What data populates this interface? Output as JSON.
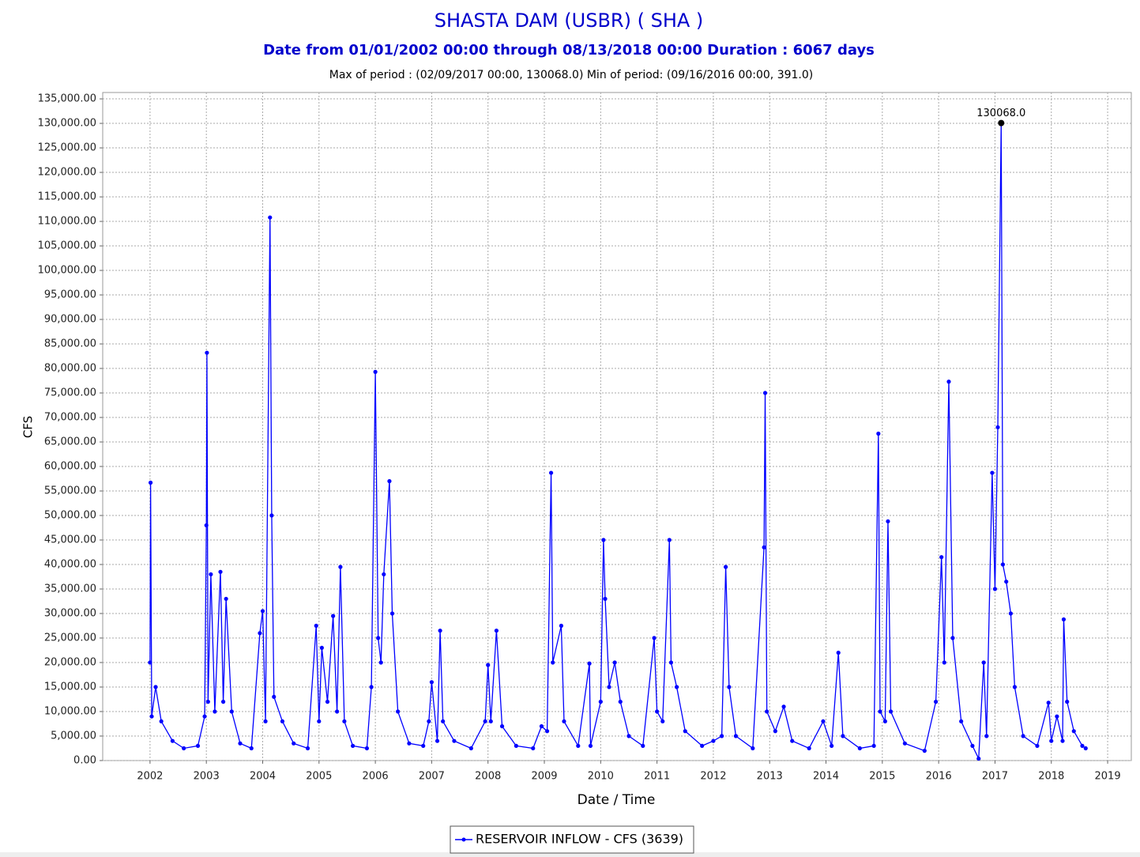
{
  "chart_data": {
    "type": "line",
    "title": "SHASTA DAM  (USBR) ( SHA )",
    "subtitle": "Date from 01/01/2002 00:00 through 08/13/2018 00:00 Duration : 6067 days",
    "caption": "Max of period : (02/09/2017 00:00, 130068.0)  Min of period: (09/16/2016 00:00,  391.0)",
    "x_label": "Date / Time",
    "y_label": "CFS",
    "grid": true,
    "legend": "bottom",
    "xlim": [
      2001.16,
      2019.42
    ],
    "xticks": [
      2002,
      2003,
      2004,
      2005,
      2006,
      2007,
      2008,
      2009,
      2010,
      2011,
      2012,
      2013,
      2014,
      2015,
      2016,
      2017,
      2018,
      2019
    ],
    "ylim": [
      0,
      136300
    ],
    "yticks": [
      {
        "value": 0,
        "label": "0.00"
      },
      {
        "value": 5000,
        "label": "5,000.00"
      },
      {
        "value": 10000,
        "label": "10,000.00"
      },
      {
        "value": 15000,
        "label": "15,000.00"
      },
      {
        "value": 20000,
        "label": "20,000.00"
      },
      {
        "value": 25000,
        "label": "25,000.00"
      },
      {
        "value": 30000,
        "label": "30,000.00"
      },
      {
        "value": 35000,
        "label": "35,000.00"
      },
      {
        "value": 40000,
        "label": "40,000.00"
      },
      {
        "value": 45000,
        "label": "45,000.00"
      },
      {
        "value": 50000,
        "label": "50,000.00"
      },
      {
        "value": 55000,
        "label": "55,000.00"
      },
      {
        "value": 60000,
        "label": "60,000.00"
      },
      {
        "value": 65000,
        "label": "65,000.00"
      },
      {
        "value": 70000,
        "label": "70,000.00"
      },
      {
        "value": 75000,
        "label": "75,000.00"
      },
      {
        "value": 80000,
        "label": "80,000.00"
      },
      {
        "value": 85000,
        "label": "85,000.00"
      },
      {
        "value": 90000,
        "label": "90,000.00"
      },
      {
        "value": 95000,
        "label": "95,000.00"
      },
      {
        "value": 100000,
        "label": "100,000.00"
      },
      {
        "value": 105000,
        "label": "105,000.00"
      },
      {
        "value": 110000,
        "label": "110,000.00"
      },
      {
        "value": 115000,
        "label": "115,000.00"
      },
      {
        "value": 120000,
        "label": "120,000.00"
      },
      {
        "value": 125000,
        "label": "125,000.00"
      },
      {
        "value": 130000,
        "label": "130,000.00"
      },
      {
        "value": 135000,
        "label": "135,000.00"
      }
    ],
    "x": [
      2002.0,
      2002.01,
      2002.03,
      2002.1,
      2002.2,
      2002.4,
      2002.6,
      2002.85,
      2002.97,
      2003.0,
      2003.01,
      2003.03,
      2003.08,
      2003.15,
      2003.25,
      2003.3,
      2003.35,
      2003.45,
      2003.6,
      2003.8,
      2003.95,
      2004.0,
      2004.05,
      2004.13,
      2004.16,
      2004.2,
      2004.35,
      2004.55,
      2004.8,
      2004.95,
      2005.0,
      2005.05,
      2005.15,
      2005.25,
      2005.32,
      2005.38,
      2005.45,
      2005.6,
      2005.85,
      2005.93,
      2006.0,
      2006.05,
      2006.1,
      2006.15,
      2006.25,
      2006.3,
      2006.4,
      2006.6,
      2006.85,
      2006.95,
      2007.0,
      2007.1,
      2007.15,
      2007.2,
      2007.4,
      2007.7,
      2007.95,
      2008.0,
      2008.05,
      2008.15,
      2008.25,
      2008.5,
      2008.8,
      2008.95,
      2009.05,
      2009.12,
      2009.15,
      2009.3,
      2009.35,
      2009.6,
      2009.8,
      2009.82,
      2010.0,
      2010.05,
      2010.08,
      2010.15,
      2010.25,
      2010.35,
      2010.5,
      2010.75,
      2010.95,
      2011.0,
      2011.1,
      2011.22,
      2011.25,
      2011.35,
      2011.5,
      2011.8,
      2012.0,
      2012.15,
      2012.22,
      2012.28,
      2012.4,
      2012.7,
      2012.9,
      2012.92,
      2012.95,
      2013.1,
      2013.25,
      2013.4,
      2013.7,
      2013.95,
      2014.1,
      2014.22,
      2014.3,
      2014.6,
      2014.85,
      2014.93,
      2014.96,
      2015.05,
      2015.1,
      2015.15,
      2015.4,
      2015.75,
      2015.95,
      2016.05,
      2016.1,
      2016.18,
      2016.25,
      2016.4,
      2016.6,
      2016.71,
      2016.8,
      2016.85,
      2016.95,
      2017.0,
      2017.05,
      2017.11,
      2017.14,
      2017.2,
      2017.28,
      2017.35,
      2017.5,
      2017.75,
      2017.95,
      2018.0,
      2018.1,
      2018.2,
      2018.22,
      2018.28,
      2018.4,
      2018.55,
      2018.61
    ],
    "series": [
      {
        "name": "RESERVOIR INFLOW - CFS (3639)",
        "color": "#0000ff",
        "values": [
          20000,
          56700,
          9000,
          15000,
          8000,
          4000,
          2500,
          3000,
          9000,
          48000,
          83200,
          12000,
          38000,
          10000,
          38500,
          12000,
          33000,
          10000,
          3500,
          2500,
          26000,
          30500,
          8000,
          110800,
          50000,
          13000,
          8000,
          3500,
          2500,
          27500,
          8000,
          23000,
          12000,
          29500,
          10000,
          39500,
          8000,
          3000,
          2500,
          15000,
          79300,
          25000,
          20000,
          38000,
          57000,
          30000,
          10000,
          3500,
          3000,
          8000,
          16000,
          4000,
          26500,
          8000,
          4000,
          2500,
          8000,
          19500,
          8000,
          26500,
          7000,
          3000,
          2500,
          7000,
          6000,
          58700,
          20000,
          27500,
          8000,
          3000,
          19800,
          3000,
          12000,
          45000,
          33000,
          15000,
          20000,
          12000,
          5000,
          3000,
          25000,
          10000,
          8000,
          45000,
          20000,
          15000,
          6000,
          3000,
          4000,
          5000,
          39500,
          15000,
          5000,
          2500,
          43500,
          75000,
          10000,
          6000,
          11000,
          4000,
          2500,
          8000,
          3000,
          22000,
          5000,
          2500,
          3000,
          66700,
          10000,
          8000,
          48800,
          10000,
          3500,
          2000,
          12000,
          41500,
          20000,
          77300,
          25000,
          8000,
          3000,
          391,
          20000,
          5000,
          58700,
          35000,
          68000,
          130068,
          40000,
          36500,
          30000,
          15000,
          5000,
          3000,
          11800,
          4000,
          9000,
          4000,
          28800,
          12000,
          6000,
          3000,
          2500
        ]
      }
    ],
    "annotations": [
      {
        "text": "130068.0",
        "x": 2017.11,
        "y": 130068
      }
    ]
  }
}
